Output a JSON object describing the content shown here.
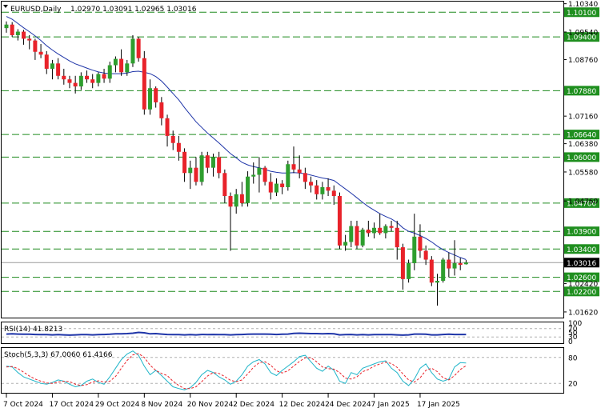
{
  "header": {
    "symbol": "EURUSD,Daily",
    "ohlc": "1.02970 1.03091 1.02965 1.03016"
  },
  "rsi_title": "RSI(14) 41.8213",
  "stoch_title": "Stoch(5,3,3) 67.0060 61.4166",
  "colors": {
    "up": "#2e9e2e",
    "down": "#e8222a",
    "ma": "#1f35a8",
    "level_line": "#1f8a1f",
    "level_tag_bg": "#1f8f1f",
    "current_tag_bg": "#000000",
    "rsi": "#1f35a8",
    "stoch_main": "#1fb5c9",
    "stoch_signal": "#e8222a"
  },
  "chart_data": [
    {
      "type": "candlestick",
      "name": "price",
      "y_ticks": [
        "1.10340",
        "1.09540",
        "1.08760",
        "1.07160",
        "1.06380",
        "1.05580",
        "1.04760",
        "1.02420",
        "1.01620"
      ],
      "ylim": [
        1.0146,
        1.104
      ],
      "levels": [
        "1.10100",
        "1.09400",
        "1.07880",
        "1.06640",
        "1.06000",
        "1.04700",
        "1.03900",
        "1.03400",
        "1.02600",
        "1.02200"
      ],
      "current": "1.03016",
      "x_labels": [
        "7 Oct 2024",
        "17 Oct 2024",
        "29 Oct 2024",
        "8 Nov 2024",
        "20 Nov 2024",
        "2 Dec 2024",
        "12 Dec 2024",
        "24 Dec 2024",
        "7 Jan 2025",
        "17 Jan 2025"
      ],
      "candles": [
        [
          1.0965,
          1.0984,
          1.0952,
          1.0975
        ],
        [
          1.0975,
          1.0982,
          1.094,
          1.0945
        ],
        [
          1.0945,
          1.0962,
          1.093,
          1.0955
        ],
        [
          1.0955,
          1.096,
          1.0918,
          1.0935
        ],
        [
          1.0935,
          1.0945,
          1.0905,
          1.093
        ],
        [
          1.093,
          1.0935,
          1.0875,
          1.0898
        ],
        [
          1.0898,
          1.092,
          1.088,
          1.089
        ],
        [
          1.089,
          1.09,
          1.0835,
          1.085
        ],
        [
          1.085,
          1.0875,
          1.082,
          1.0865
        ],
        [
          1.0865,
          1.088,
          1.082,
          1.083
        ],
        [
          1.083,
          1.085,
          1.0805,
          1.082
        ],
        [
          1.082,
          1.083,
          1.0795,
          1.081
        ],
        [
          1.081,
          1.083,
          1.078,
          1.08
        ],
        [
          1.08,
          1.084,
          1.079,
          1.083
        ],
        [
          1.083,
          1.0845,
          1.081,
          1.082
        ],
        [
          1.082,
          1.0835,
          1.0795,
          1.081
        ],
        [
          1.081,
          1.084,
          1.08,
          1.0835
        ],
        [
          1.0835,
          1.085,
          1.081,
          1.0822
        ],
        [
          1.0822,
          1.087,
          1.081,
          1.086
        ],
        [
          1.086,
          1.0885,
          1.084,
          1.0878
        ],
        [
          1.0878,
          1.0905,
          1.083,
          1.084
        ],
        [
          1.084,
          1.0875,
          1.083,
          1.0865
        ],
        [
          1.0865,
          1.0945,
          1.0855,
          1.0935
        ],
        [
          1.0935,
          1.094,
          1.087,
          1.088
        ],
        [
          1.088,
          1.09,
          1.072,
          1.0735
        ],
        [
          1.0735,
          1.082,
          1.072,
          1.0795
        ],
        [
          1.0795,
          1.08,
          1.074,
          1.0755
        ],
        [
          1.0755,
          1.077,
          1.069,
          1.071
        ],
        [
          1.071,
          1.072,
          1.063,
          1.066
        ],
        [
          1.066,
          1.0675,
          1.062,
          1.064
        ],
        [
          1.064,
          1.066,
          1.059,
          1.0615
        ],
        [
          1.0615,
          1.0625,
          1.053,
          1.0555
        ],
        [
          1.0555,
          1.059,
          1.051,
          1.057
        ],
        [
          1.057,
          1.06,
          1.052,
          1.053
        ],
        [
          1.053,
          1.0615,
          1.052,
          1.0605
        ],
        [
          1.0605,
          1.0615,
          1.0555,
          1.057
        ],
        [
          1.057,
          1.061,
          1.0545,
          1.06
        ],
        [
          1.06,
          1.0615,
          1.054,
          1.0555
        ],
        [
          1.0555,
          1.0565,
          1.047,
          1.049
        ],
        [
          1.049,
          1.05,
          1.0335,
          1.046
        ],
        [
          1.046,
          1.051,
          1.044,
          1.0495
        ],
        [
          1.0495,
          1.053,
          1.046,
          1.047
        ],
        [
          1.047,
          1.056,
          1.046,
          1.0545
        ],
        [
          1.0545,
          1.0585,
          1.0525,
          1.055
        ],
        [
          1.055,
          1.06,
          1.05,
          1.057
        ],
        [
          1.057,
          1.0575,
          1.052,
          1.053
        ],
        [
          1.053,
          1.0555,
          1.048,
          1.05
        ],
        [
          1.05,
          1.054,
          1.049,
          1.0525
        ],
        [
          1.0525,
          1.0535,
          1.0495,
          1.0515
        ],
        [
          1.0515,
          1.059,
          1.0505,
          1.058
        ],
        [
          1.058,
          1.063,
          1.0555,
          1.0565
        ],
        [
          1.0565,
          1.0605,
          1.054,
          1.0555
        ],
        [
          1.0555,
          1.057,
          1.051,
          1.053
        ],
        [
          1.053,
          1.0545,
          1.05,
          1.052
        ],
        [
          1.052,
          1.0535,
          1.048,
          1.0495
        ],
        [
          1.0495,
          1.053,
          1.048,
          1.0515
        ],
        [
          1.0515,
          1.054,
          1.049,
          1.0505
        ],
        [
          1.0505,
          1.052,
          1.0465,
          1.049
        ],
        [
          1.049,
          1.05,
          1.034,
          1.035
        ],
        [
          1.035,
          1.038,
          1.0335,
          1.036
        ],
        [
          1.036,
          1.042,
          1.0345,
          1.0405
        ],
        [
          1.0405,
          1.042,
          1.034,
          1.035
        ],
        [
          1.035,
          1.04,
          1.0345,
          1.0395
        ],
        [
          1.0395,
          1.042,
          1.0375,
          1.0385
        ],
        [
          1.0385,
          1.0415,
          1.037,
          1.04
        ],
        [
          1.04,
          1.044,
          1.038,
          1.0385
        ],
        [
          1.0385,
          1.041,
          1.037,
          1.0405
        ],
        [
          1.0405,
          1.042,
          1.039,
          1.04
        ],
        [
          1.04,
          1.042,
          1.031,
          1.0345
        ],
        [
          1.0345,
          1.0355,
          1.0225,
          1.0255
        ],
        [
          1.0255,
          1.031,
          1.0245,
          1.03
        ],
        [
          1.03,
          1.044,
          1.028,
          1.0375
        ],
        [
          1.0375,
          1.041,
          1.0315,
          1.0335
        ],
        [
          1.0335,
          1.035,
          1.0295,
          1.031
        ],
        [
          1.031,
          1.032,
          1.0235,
          1.0245
        ],
        [
          1.0245,
          1.027,
          1.018,
          1.025
        ],
        [
          1.025,
          1.0315,
          1.0245,
          1.031
        ],
        [
          1.031,
          1.033,
          1.026,
          1.0285
        ],
        [
          1.0285,
          1.0365,
          1.0265,
          1.03
        ],
        [
          1.03,
          1.0315,
          1.028,
          1.0295
        ],
        [
          1.0297,
          1.0309,
          1.0296,
          1.0302
        ]
      ],
      "moving_average": [
        1.0998,
        1.099,
        1.0978,
        1.0966,
        1.0955,
        1.0943,
        1.093,
        1.0915,
        1.0903,
        1.0892,
        1.0882,
        1.0872,
        1.0864,
        1.0858,
        1.0852,
        1.0846,
        1.0841,
        1.0838,
        1.0836,
        1.0836,
        1.0836,
        1.0838,
        1.0842,
        1.0843,
        1.084,
        1.0836,
        1.0828,
        1.0815,
        1.0798,
        1.078,
        1.0762,
        1.074,
        1.072,
        1.07,
        1.0684,
        1.0668,
        1.0654,
        1.064,
        1.0625,
        1.061,
        1.0598,
        1.0585,
        1.0578,
        1.0573,
        1.057,
        1.0565,
        1.056,
        1.0557,
        1.0555,
        1.0555,
        1.0556,
        1.0555,
        1.0553,
        1.0549,
        1.0545,
        1.0541,
        1.0538,
        1.0534,
        1.0522,
        1.051,
        1.0498,
        1.0485,
        1.0472,
        1.046,
        1.045,
        1.044,
        1.0432,
        1.0425,
        1.0415,
        1.04,
        1.039,
        1.0385,
        1.0378,
        1.037,
        1.036,
        1.0348,
        1.0338,
        1.033,
        1.0323,
        1.0316,
        1.031
      ]
    },
    {
      "type": "line",
      "name": "RSI(14)",
      "y_ticks": [
        "100",
        "70",
        "50",
        "30",
        "0"
      ],
      "ylim": [
        0,
        100
      ],
      "levels": [
        70,
        30
      ],
      "values": [
        44,
        45,
        44,
        43,
        43,
        42,
        41,
        41,
        40,
        41,
        40,
        39,
        40,
        41,
        41,
        40,
        41,
        42,
        43,
        45,
        45,
        46,
        48,
        52,
        50,
        45,
        46,
        44,
        42,
        41,
        41,
        40,
        41,
        40,
        42,
        41,
        42,
        41,
        41,
        40,
        41,
        42,
        43,
        44,
        44,
        44,
        43,
        42,
        43,
        44,
        47,
        48,
        47,
        46,
        46,
        45,
        46,
        45,
        40,
        41,
        42,
        40,
        41,
        40,
        41,
        41,
        41,
        41,
        40,
        39,
        40,
        44,
        44,
        43,
        40,
        40,
        42,
        43,
        42,
        42,
        42
      ]
    },
    {
      "type": "line",
      "name": "Stoch(5,3,3)",
      "y_ticks": [
        "80",
        "20"
      ],
      "ylim": [
        0,
        100
      ],
      "levels": [
        80,
        20
      ],
      "main": [
        60,
        58,
        45,
        35,
        30,
        25,
        20,
        18,
        22,
        28,
        25,
        18,
        12,
        15,
        25,
        30,
        22,
        18,
        35,
        55,
        75,
        88,
        95,
        85,
        60,
        40,
        50,
        38,
        25,
        12,
        8,
        5,
        10,
        22,
        40,
        50,
        45,
        35,
        28,
        18,
        25,
        40,
        60,
        70,
        75,
        65,
        45,
        38,
        50,
        60,
        70,
        82,
        85,
        70,
        55,
        48,
        60,
        50,
        25,
        20,
        45,
        40,
        55,
        60,
        65,
        70,
        72,
        55,
        45,
        25,
        15,
        30,
        55,
        65,
        45,
        30,
        25,
        30,
        58,
        68,
        67
      ],
      "signal": [
        58,
        59,
        54,
        46,
        37,
        30,
        25,
        21,
        20,
        23,
        25,
        24,
        18,
        15,
        17,
        23,
        26,
        23,
        25,
        36,
        55,
        73,
        86,
        89,
        80,
        62,
        50,
        43,
        38,
        25,
        15,
        8,
        8,
        12,
        24,
        37,
        45,
        43,
        36,
        27,
        24,
        28,
        42,
        57,
        68,
        70,
        62,
        49,
        44,
        49,
        60,
        71,
        79,
        79,
        70,
        58,
        54,
        53,
        45,
        32,
        30,
        35,
        47,
        52,
        60,
        65,
        69,
        66,
        57,
        42,
        28,
        23,
        33,
        50,
        55,
        47,
        33,
        28,
        38,
        52,
        61
      ]
    }
  ]
}
